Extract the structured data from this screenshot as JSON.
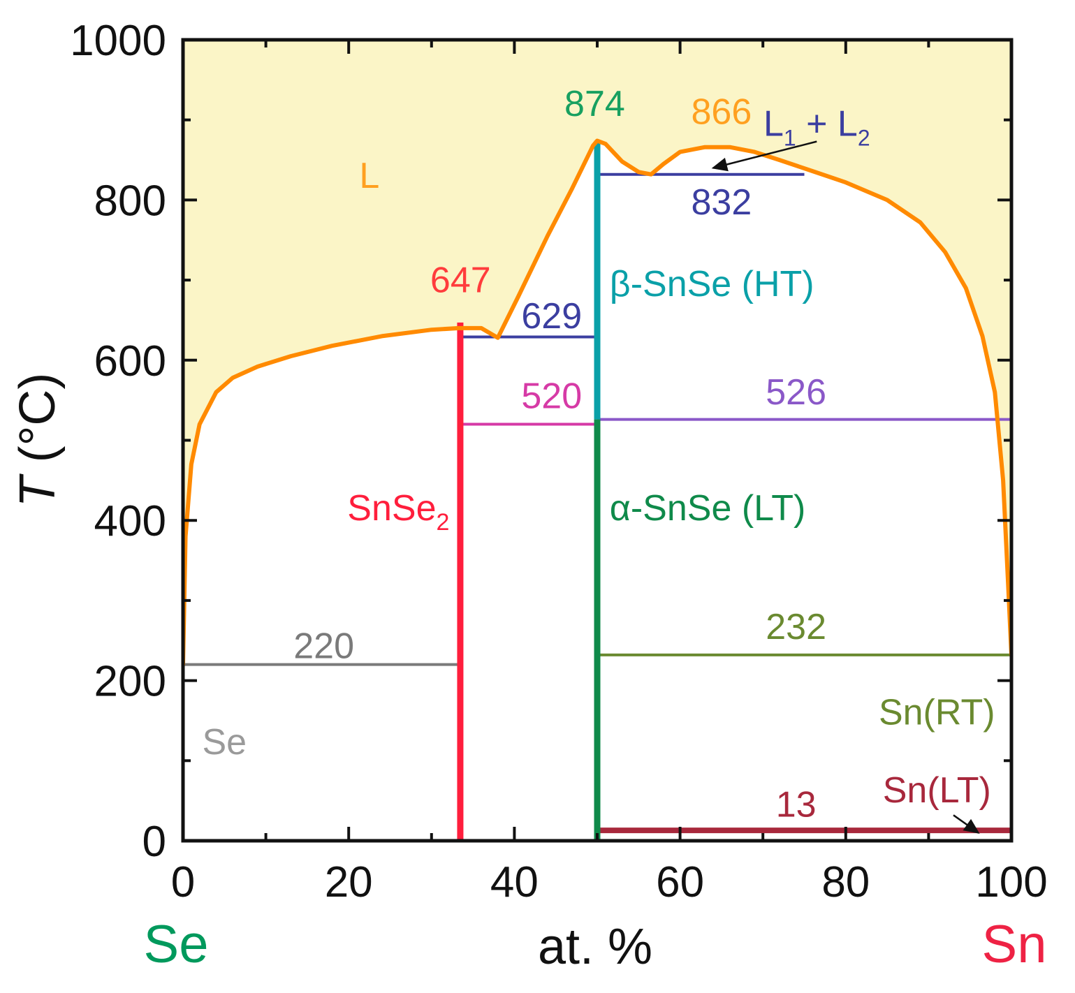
{
  "chart_data": {
    "type": "line",
    "subtype": "phase-diagram",
    "title": "",
    "xlabel": "at. %",
    "ylabel": "T (°C)",
    "ylabel_italic": "T",
    "ylabel_unit": " (°C)",
    "xlim": [
      0,
      100
    ],
    "ylim": [
      0,
      1000
    ],
    "xticks": [
      0,
      20,
      40,
      60,
      80,
      100
    ],
    "yticks": [
      0,
      200,
      400,
      600,
      800,
      1000
    ],
    "grid": false,
    "end_labels": {
      "left": {
        "text": "Se",
        "color": "#00995c"
      },
      "right": {
        "text": "Sn",
        "color": "#ee2244"
      }
    },
    "colors": {
      "liquid_fill": "#fbf5c7",
      "liquidus": "#ff8a00",
      "snse2": "#ff1e3c",
      "snse_beta": "#0aa0a8",
      "snse_alpha": "#0f8a4a",
      "eutectic_629": "#3b3ea0",
      "mono_832": "#3b3ea0",
      "line_520": "#d63aa6",
      "line_526": "#8a58c8",
      "line_232": "#6a8a30",
      "line_220": "#7a7a7a",
      "line_13": "#a8283c"
    },
    "liquidus": {
      "x": [
        0,
        0.3,
        1,
        2,
        4,
        6,
        9,
        13,
        18,
        24,
        30,
        33.3,
        36,
        38,
        40.5,
        44,
        47,
        49.5,
        50,
        51,
        53,
        55,
        56.5,
        58,
        60,
        63,
        66,
        69,
        72,
        76,
        80,
        85,
        89,
        92,
        94.5,
        96.5,
        98,
        99,
        99.6,
        100
      ],
      "y": [
        220,
        380,
        470,
        520,
        560,
        578,
        592,
        605,
        618,
        630,
        638,
        640,
        640,
        628,
        680,
        755,
        815,
        868,
        874,
        870,
        848,
        835,
        832,
        845,
        860,
        866,
        866,
        860,
        850,
        836,
        822,
        800,
        772,
        735,
        690,
        630,
        560,
        450,
        320,
        232
      ]
    },
    "phases": [
      {
        "name": "SnSe2",
        "label": "SnSe",
        "sub": "2",
        "x": 33.3,
        "y_top": 647,
        "color": "#ff1e3c"
      },
      {
        "name": "beta-SnSe",
        "label": "β-SnSe (HT)",
        "x": 50,
        "y_from": 526,
        "y_top": 874,
        "color": "#0aa0a8"
      },
      {
        "name": "alpha-SnSe",
        "label": "α-SnSe (LT)",
        "x": 50,
        "y_from": 0,
        "y_top": 526,
        "color": "#0f8a4a"
      }
    ],
    "invariant_lines": [
      {
        "T": 220,
        "x": [
          0,
          33.3
        ],
        "label": "220",
        "color": "#7a7a7a"
      },
      {
        "T": 629,
        "x": [
          33.3,
          50
        ],
        "label": "629",
        "color": "#3b3ea0"
      },
      {
        "T": 520,
        "x": [
          33.3,
          50
        ],
        "label": "520",
        "color": "#d63aa6"
      },
      {
        "T": 526,
        "x": [
          50,
          100
        ],
        "label": "526",
        "color": "#8a58c8"
      },
      {
        "T": 832,
        "x": [
          50,
          75
        ],
        "label": "832",
        "color": "#3b3ea0"
      },
      {
        "T": 232,
        "x": [
          50,
          100
        ],
        "label": "232",
        "color": "#6a8a30"
      },
      {
        "T": 13,
        "x": [
          50,
          100
        ],
        "label": "13",
        "color": "#a8283c"
      }
    ],
    "annotations": [
      {
        "text": "647",
        "color": "#ff3c3c",
        "x": 33.5,
        "y": 685
      },
      {
        "text": "874",
        "color": "#18a060",
        "x": 49.7,
        "y": 905
      },
      {
        "text": "866",
        "color": "#ffa020",
        "x": 65,
        "y": 895
      },
      {
        "text": "L",
        "color": "#ffa020",
        "x": 22.5,
        "y": 815
      },
      {
        "text": "Se",
        "color": "#9a9a9a",
        "x": 5,
        "y": 108
      },
      {
        "text": "Sn(RT)",
        "color": "#6a8a30",
        "x": 91,
        "y": 145
      },
      {
        "text": "Sn(LT)",
        "color": "#a8283c",
        "x": 91,
        "y": 48
      }
    ],
    "l1l2": {
      "label_main": "L",
      "sub1": "1",
      "plus": " + ",
      "sub2": "2",
      "color": "#3b3ea0",
      "arrow_to": [
        64,
        840
      ]
    },
    "snlt_arrow_to": [
      96,
      10
    ]
  }
}
